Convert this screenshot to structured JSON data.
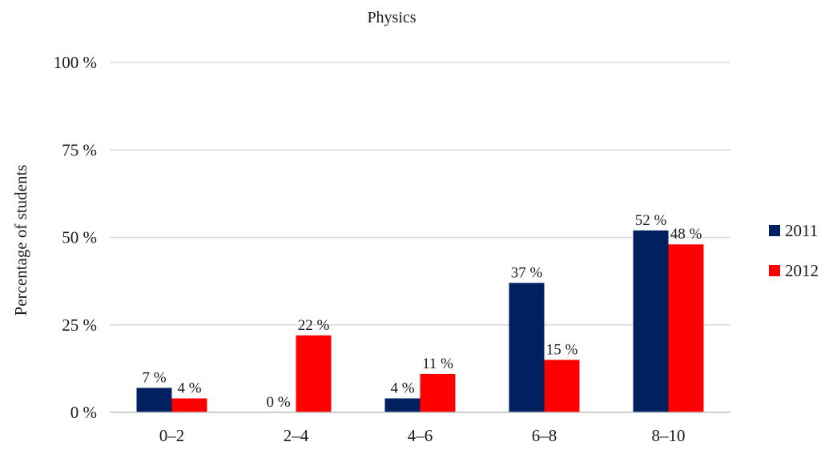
{
  "chart_data": {
    "type": "bar",
    "title": "Physics",
    "ylabel": "Percentage of students",
    "xlabel": "",
    "categories": [
      "0–2",
      "2–4",
      "4–6",
      "6–8",
      "8–10"
    ],
    "ylim": [
      0,
      100
    ],
    "yticks": [
      0,
      25,
      50,
      75,
      100
    ],
    "ytick_labels": [
      "0 %",
      "25 %",
      "50 %",
      "75 %",
      "100 %"
    ],
    "grid": true,
    "legend_position": "right",
    "series": [
      {
        "name": "2011",
        "color": "#002060",
        "values": [
          7,
          0,
          4,
          37,
          52
        ],
        "labels": [
          "7 %",
          "0 %",
          "4 %",
          "37 %",
          "52 %"
        ]
      },
      {
        "name": "2012",
        "color": "#ff0000",
        "values": [
          4,
          22,
          11,
          15,
          48
        ],
        "labels": [
          "4 %",
          "22 %",
          "11 %",
          "15 %",
          "48 %"
        ]
      }
    ]
  }
}
